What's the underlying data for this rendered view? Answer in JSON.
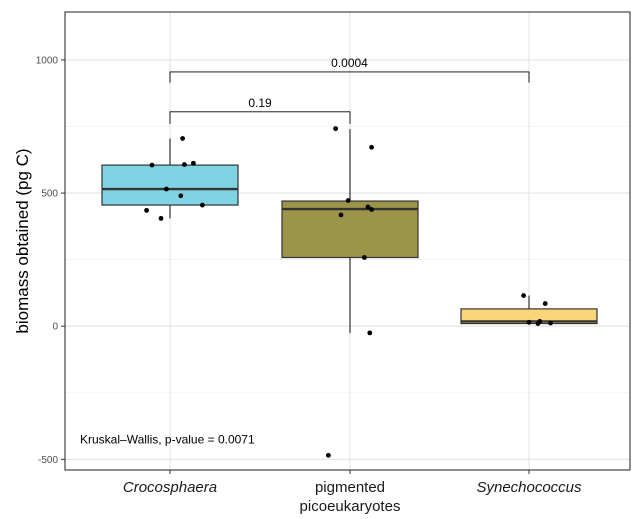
{
  "chart_data": {
    "type": "box",
    "title": "",
    "xlabel": "",
    "ylabel": "biomass obtained (pg C)",
    "ylim": [
      -540,
      1180
    ],
    "yticks": [
      -500,
      0,
      500,
      1000
    ],
    "grid": true,
    "categories": [
      {
        "label": "Crocosphaera",
        "italic": true
      },
      {
        "label_lines": [
          "pigmented",
          "picoeukaryotes"
        ],
        "italic": false
      },
      {
        "label": "Synechococcus",
        "italic": true
      }
    ],
    "boxes": [
      {
        "q1": 455,
        "median": 515,
        "q3": 605,
        "whisker_low": 405,
        "whisker_high": 705,
        "color": "#7fd3e3"
      },
      {
        "q1": 258,
        "median": 440,
        "q3": 470,
        "whisker_low": -25,
        "whisker_high": 740,
        "color": "#9c9448"
      },
      {
        "q1": 10,
        "median": 18,
        "q3": 65,
        "whisker_low": 5,
        "whisker_high": 115,
        "color": "#fcd57a"
      }
    ],
    "points": [
      {
        "group": 0,
        "jitter": 0.07,
        "y": 705
      },
      {
        "group": 0,
        "jitter": 0.13,
        "y": 612
      },
      {
        "group": 0,
        "jitter": 0.08,
        "y": 607
      },
      {
        "group": 0,
        "jitter": -0.1,
        "y": 605
      },
      {
        "group": 0,
        "jitter": -0.02,
        "y": 515
      },
      {
        "group": 0,
        "jitter": 0.06,
        "y": 490
      },
      {
        "group": 0,
        "jitter": 0.18,
        "y": 455
      },
      {
        "group": 0,
        "jitter": -0.13,
        "y": 435
      },
      {
        "group": 0,
        "jitter": -0.05,
        "y": 405
      },
      {
        "group": 1,
        "jitter": -0.08,
        "y": 742
      },
      {
        "group": 1,
        "jitter": 0.12,
        "y": 672
      },
      {
        "group": 1,
        "jitter": -0.01,
        "y": 472
      },
      {
        "group": 1,
        "jitter": 0.1,
        "y": 448
      },
      {
        "group": 1,
        "jitter": 0.12,
        "y": 438
      },
      {
        "group": 1,
        "jitter": -0.05,
        "y": 418
      },
      {
        "group": 1,
        "jitter": 0.08,
        "y": 258
      },
      {
        "group": 1,
        "jitter": 0.11,
        "y": -25
      },
      {
        "group": 1,
        "jitter": -0.12,
        "y": -485
      },
      {
        "group": 2,
        "jitter": -0.03,
        "y": 115
      },
      {
        "group": 2,
        "jitter": 0.09,
        "y": 85
      },
      {
        "group": 2,
        "jitter": 0.0,
        "y": 15
      },
      {
        "group": 2,
        "jitter": 0.05,
        "y": 10
      },
      {
        "group": 2,
        "jitter": 0.12,
        "y": 12
      },
      {
        "group": 2,
        "jitter": 0.06,
        "y": 18
      }
    ],
    "comparisons": [
      {
        "from": 0,
        "to": 1,
        "y": 805,
        "tick_down": 45,
        "label": "0.19"
      },
      {
        "from": 0,
        "to": 2,
        "y": 955,
        "tick_down": 40,
        "label": "0.0004"
      }
    ],
    "annotation": {
      "text": "Kruskal–Wallis, p-value = 0.0071",
      "x": 0.43,
      "y": -440
    }
  }
}
